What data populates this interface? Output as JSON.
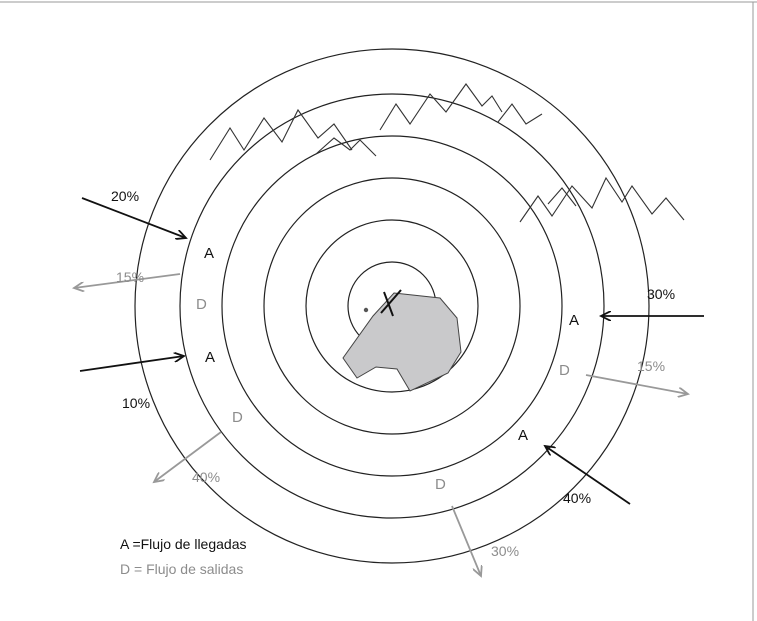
{
  "colors": {
    "ink": "#111111",
    "ring": "#222222",
    "departure": "#999999",
    "departure_text": "#8c8c8c",
    "area_fill": "#c9c9cb",
    "area_stroke": "#444444",
    "frame": "#9a9a9a"
  },
  "arrivals": {
    "flow_letter": "A",
    "percents": [
      "20%",
      "10%",
      "30%",
      "40%"
    ]
  },
  "departures": {
    "flow_letter": "D",
    "percents": [
      "15%",
      "40%",
      "15%",
      "30%"
    ]
  },
  "legend": {
    "arrivals_text": "A =Flujo de llegadas",
    "departures_text": "D = Flujo de salidas"
  },
  "icons": {
    "mountains": "mountain-range-icon",
    "runway": "runway-cross-icon",
    "airport_area": "airport-area-shape",
    "center": "center-dot-icon"
  }
}
